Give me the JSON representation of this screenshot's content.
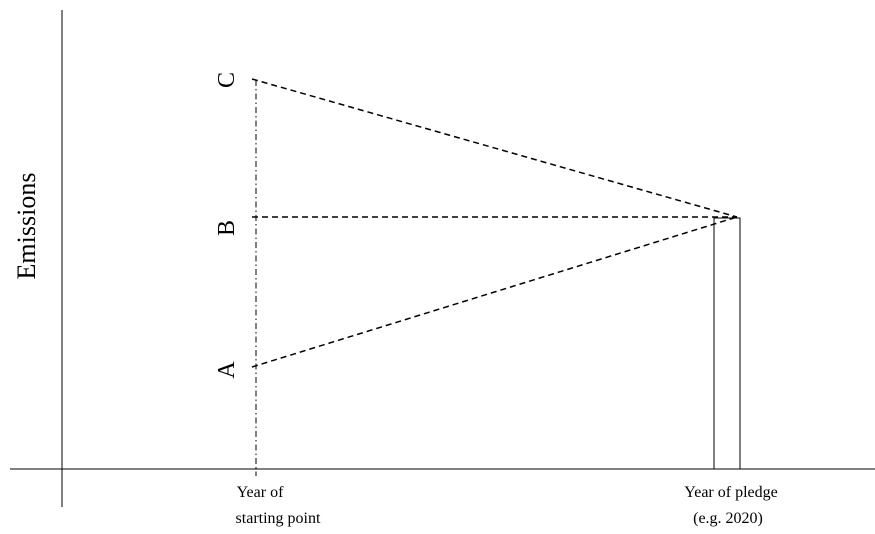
{
  "diagram": {
    "y_axis_label": "Emissions",
    "points": {
      "a": "A",
      "b": "B",
      "c": "C"
    },
    "x_labels": {
      "start_line1": "Year of",
      "start_line2": "starting point",
      "pledge_line1": "Year of pledge",
      "pledge_line2": "(e.g. 2020)"
    }
  }
}
